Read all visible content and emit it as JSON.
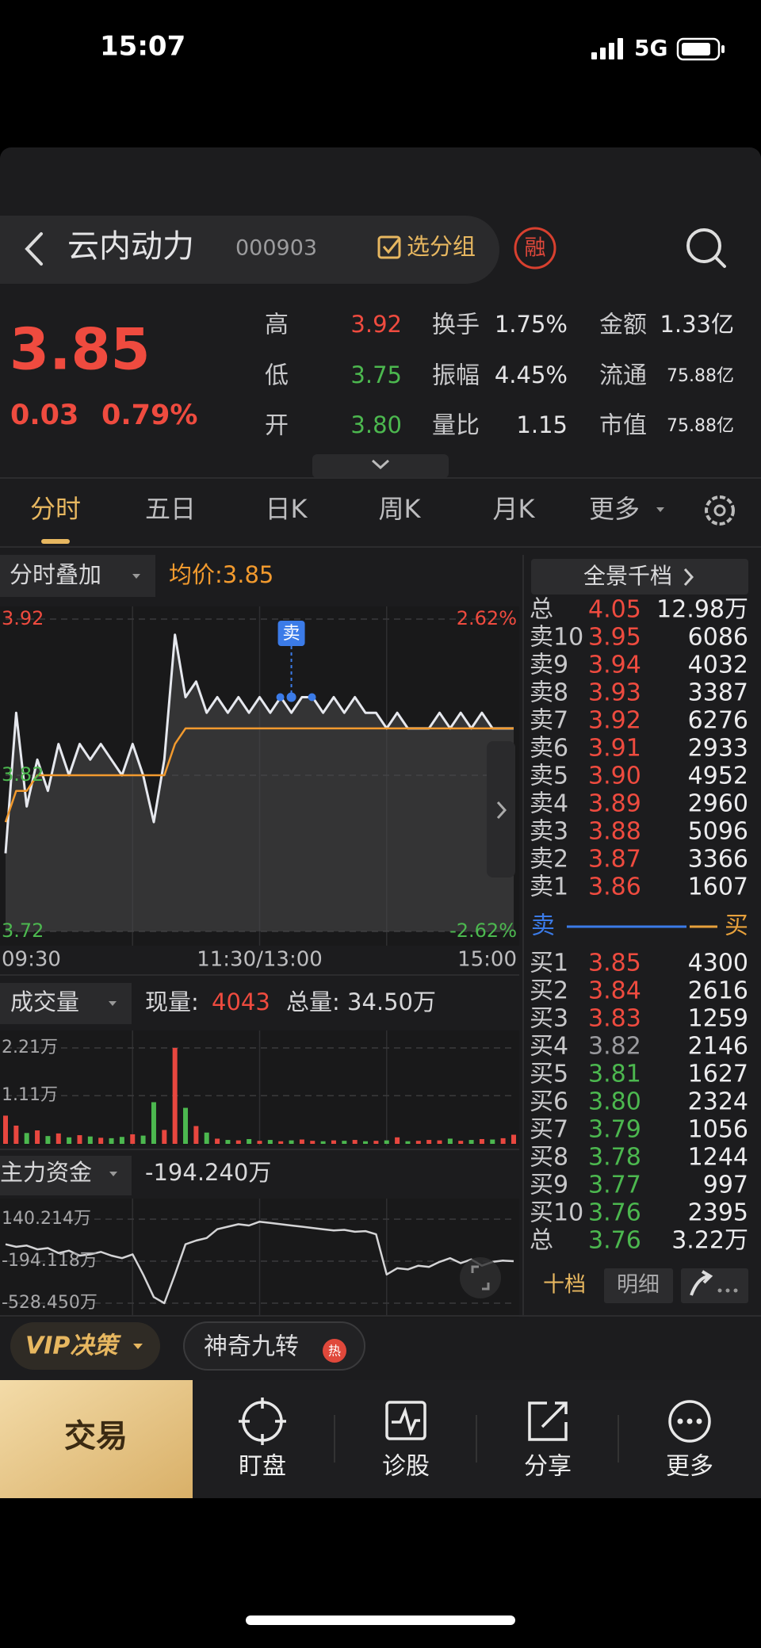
{
  "status_bar": {
    "time": "15:07",
    "network": "5G"
  },
  "header": {
    "name": "云内动力",
    "code": "000903",
    "group": "选分组",
    "margin": "融"
  },
  "quote": {
    "price": "3.85",
    "change": "0.03",
    "change_pct": "0.79%",
    "stats": [
      [
        {
          "label": "高",
          "value": "3.92",
          "color": "#ef4b3f"
        },
        {
          "label": "换手",
          "value": "1.75%"
        },
        {
          "label": "金额",
          "value": "1.33亿"
        }
      ],
      [
        {
          "label": "低",
          "value": "3.75",
          "color": "#4cb84f"
        },
        {
          "label": "振幅",
          "value": "4.45%"
        },
        {
          "label": "流通",
          "value": "75.88亿"
        }
      ],
      [
        {
          "label": "开",
          "value": "3.80",
          "color": "#4cb84f"
        },
        {
          "label": "量比",
          "value": "1.15"
        },
        {
          "label": "市值",
          "value": "75.88亿"
        }
      ]
    ]
  },
  "tabs": [
    "分时",
    "五日",
    "日K",
    "周K",
    "月K",
    "更多"
  ],
  "chart_data": [
    {
      "type": "line",
      "title": "分时叠加",
      "subtitle": "均价:3.85",
      "x": [
        0,
        5,
        10,
        15,
        20,
        25,
        30,
        35,
        40,
        45,
        50,
        55,
        60,
        65,
        70,
        75,
        80,
        85,
        90,
        95,
        100,
        105,
        110,
        115,
        120,
        125,
        130,
        135,
        140,
        145,
        150,
        155,
        160,
        165,
        170,
        175,
        180,
        185,
        190,
        195,
        200,
        205,
        210,
        215,
        220,
        225,
        230,
        235,
        240
      ],
      "xlim": [
        0,
        240
      ],
      "xticks": [
        {
          "value": 0,
          "label": "09:30"
        },
        {
          "value": 120,
          "label": "11:30/13:00"
        },
        {
          "value": 240,
          "label": "15:00"
        }
      ],
      "ylim": [
        3.72,
        3.92
      ],
      "yticks": [
        3.72,
        3.82,
        3.92
      ],
      "y2lim": [
        -2.62,
        2.62
      ],
      "y2ticks": [
        {
          "value": -2.62,
          "label": "-2.62%"
        },
        {
          "value": 2.62,
          "label": "2.62%"
        }
      ],
      "series": [
        {
          "color": "#e6e8ee",
          "values": [
            3.77,
            3.86,
            3.8,
            3.83,
            3.81,
            3.84,
            3.82,
            3.84,
            3.83,
            3.84,
            3.83,
            3.82,
            3.84,
            3.82,
            3.79,
            3.83,
            3.91,
            3.87,
            3.88,
            3.86,
            3.87,
            3.86,
            3.87,
            3.86,
            3.87,
            3.86,
            3.87,
            3.86,
            3.87,
            3.87,
            3.86,
            3.87,
            3.86,
            3.87,
            3.86,
            3.86,
            3.85,
            3.86,
            3.85,
            3.85,
            3.85,
            3.86,
            3.85,
            3.86,
            3.85,
            3.86,
            3.85,
            3.85,
            3.85
          ]
        },
        {
          "color": "#f29a2e",
          "values": [
            3.79,
            3.81,
            3.81,
            3.82,
            3.82,
            3.82,
            3.82,
            3.82,
            3.82,
            3.82,
            3.82,
            3.82,
            3.82,
            3.82,
            3.82,
            3.82,
            3.84,
            3.85,
            3.85,
            3.85,
            3.85,
            3.85,
            3.85,
            3.85,
            3.85,
            3.85,
            3.85,
            3.85,
            3.85,
            3.85,
            3.85,
            3.85,
            3.85,
            3.85,
            3.85,
            3.85,
            3.85,
            3.85,
            3.85,
            3.85,
            3.85,
            3.85,
            3.85,
            3.85,
            3.85,
            3.85,
            3.85,
            3.85,
            3.85
          ]
        }
      ],
      "annotations": [
        {
          "text": "卖",
          "x": 135,
          "y": 3.87
        }
      ]
    },
    {
      "type": "bar",
      "title": "成交量",
      "current_label": "现量:",
      "current": "4043",
      "total": "总量: 34.50万",
      "x": [
        0,
        5,
        10,
        15,
        20,
        25,
        30,
        35,
        40,
        45,
        50,
        55,
        60,
        65,
        70,
        75,
        80,
        85,
        90,
        95,
        100,
        105,
        110,
        115,
        120,
        125,
        130,
        135,
        140,
        145,
        150,
        155,
        160,
        165,
        170,
        175,
        180,
        185,
        190,
        195,
        200,
        205,
        210,
        215,
        220,
        225,
        230,
        235,
        240
      ],
      "xlim": [
        0,
        240
      ],
      "ylim": [
        0,
        22100
      ],
      "yticks": [
        {
          "value": 11100,
          "label": "1.11万"
        },
        {
          "value": 22100,
          "label": "2.21万"
        }
      ],
      "colors": {
        "up": "#e8473f",
        "down": "#4cb84f"
      },
      "values": [
        6500,
        4200,
        2500,
        3100,
        1800,
        2400,
        1500,
        2000,
        1700,
        1400,
        1300,
        1600,
        2200,
        1900,
        9600,
        3200,
        22100,
        8300,
        4100,
        2600,
        1200,
        900,
        800,
        1100,
        700,
        900,
        600,
        800,
        1000,
        700,
        600,
        800,
        700,
        900,
        600,
        700,
        800,
        1500,
        600,
        700,
        900,
        800,
        1200,
        700,
        900,
        1100,
        1000,
        1300,
        2100
      ]
    },
    {
      "type": "line",
      "title": "主力资金",
      "subtitle": "-194.240万",
      "x": [
        0,
        5,
        10,
        15,
        20,
        25,
        30,
        35,
        40,
        45,
        50,
        55,
        60,
        65,
        70,
        75,
        80,
        85,
        90,
        95,
        100,
        105,
        110,
        115,
        120,
        125,
        130,
        135,
        140,
        145,
        150,
        155,
        160,
        165,
        170,
        175,
        180,
        185,
        190,
        195,
        200,
        205,
        210,
        215,
        220,
        225,
        230,
        235,
        240
      ],
      "xlim": [
        0,
        240
      ],
      "ylim": [
        -528.45,
        140.214
      ],
      "yticks": [
        {
          "value": 140.214,
          "label": "140.214万"
        },
        {
          "value": -194.118,
          "label": "-194.118万"
        },
        {
          "value": -528.45,
          "label": "-528.450万"
        }
      ],
      "series": [
        {
          "color": "#d4d4d6",
          "values": [
            -60,
            -80,
            -70,
            -100,
            -90,
            -130,
            -110,
            -150,
            -140,
            -120,
            -150,
            -170,
            -140,
            -300,
            -480,
            -528.45,
            -300,
            -60,
            -30,
            -10,
            60,
            80,
            100,
            90,
            120,
            110,
            100,
            90,
            80,
            70,
            60,
            50,
            55,
            40,
            45,
            20,
            -300,
            -250,
            -260,
            -230,
            -240,
            -200,
            -170,
            -210,
            -180,
            -230,
            -200,
            -190,
            -194.24
          ]
        }
      ]
    }
  ],
  "order_book": {
    "title": "全景千档",
    "sell": [
      {
        "label": "总",
        "price": "4.05",
        "volume": "12.98万",
        "color": "#ef4b3f"
      },
      {
        "label": "卖10",
        "price": "3.95",
        "volume": "6086",
        "color": "#ef4b3f"
      },
      {
        "label": "卖9",
        "price": "3.94",
        "volume": "4032",
        "color": "#ef4b3f"
      },
      {
        "label": "卖8",
        "price": "3.93",
        "volume": "3387",
        "color": "#ef4b3f"
      },
      {
        "label": "卖7",
        "price": "3.92",
        "volume": "6276",
        "color": "#ef4b3f"
      },
      {
        "label": "卖6",
        "price": "3.91",
        "volume": "2933",
        "color": "#ef4b3f"
      },
      {
        "label": "卖5",
        "price": "3.90",
        "volume": "4952",
        "color": "#ef4b3f"
      },
      {
        "label": "卖4",
        "price": "3.89",
        "volume": "2960",
        "color": "#ef4b3f"
      },
      {
        "label": "卖3",
        "price": "3.88",
        "volume": "5096",
        "color": "#ef4b3f"
      },
      {
        "label": "卖2",
        "price": "3.87",
        "volume": "3366",
        "color": "#ef4b3f"
      },
      {
        "label": "卖1",
        "price": "3.86",
        "volume": "1607",
        "color": "#ef4b3f"
      }
    ],
    "divider": {
      "left": "卖",
      "right": "买"
    },
    "buy": [
      {
        "label": "买1",
        "price": "3.85",
        "volume": "4300",
        "color": "#ef4b3f"
      },
      {
        "label": "买2",
        "price": "3.84",
        "volume": "2616",
        "color": "#ef4b3f"
      },
      {
        "label": "买3",
        "price": "3.83",
        "volume": "1259",
        "color": "#ef4b3f"
      },
      {
        "label": "买4",
        "price": "3.82",
        "volume": "2146",
        "color": "#9a9a9e"
      },
      {
        "label": "买5",
        "price": "3.81",
        "volume": "1627",
        "color": "#4cb84f"
      },
      {
        "label": "买6",
        "price": "3.80",
        "volume": "2324",
        "color": "#4cb84f"
      },
      {
        "label": "买7",
        "price": "3.79",
        "volume": "1056",
        "color": "#4cb84f"
      },
      {
        "label": "买8",
        "price": "3.78",
        "volume": "1244",
        "color": "#4cb84f"
      },
      {
        "label": "买9",
        "price": "3.77",
        "volume": "997",
        "color": "#4cb84f"
      },
      {
        "label": "买10",
        "price": "3.76",
        "volume": "2395",
        "color": "#4cb84f"
      },
      {
        "label": "总",
        "price": "3.76",
        "volume": "3.22万",
        "color": "#4cb84f"
      }
    ],
    "buttons": [
      "十档",
      "明细"
    ]
  },
  "tools": [
    {
      "label": "VIP决策"
    },
    {
      "label": "神奇九转",
      "badge": "热"
    }
  ],
  "bottom_nav": [
    "交易",
    "盯盘",
    "诊股",
    "分享",
    "更多"
  ]
}
